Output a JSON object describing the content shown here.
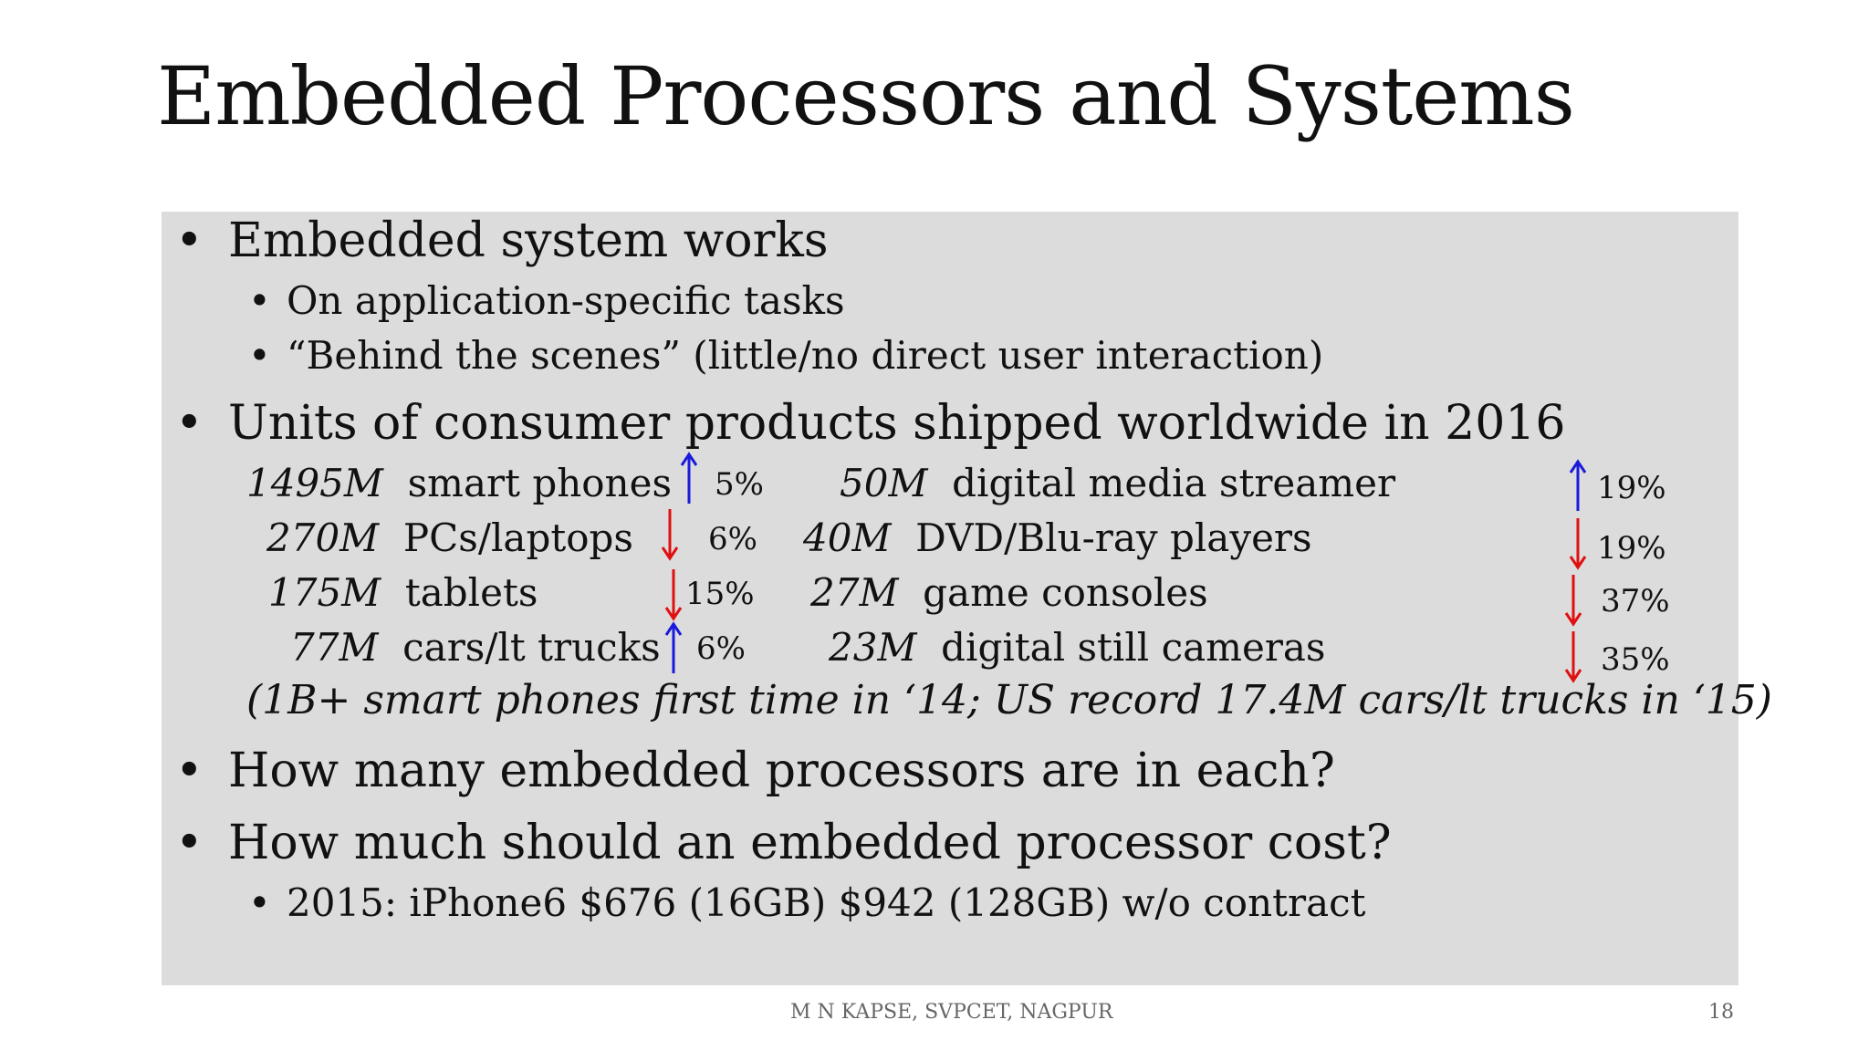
{
  "title": "Embedded Processors and Systems",
  "bullets": {
    "b1": "Embedded system works",
    "b1_sub1": "On application-specific tasks",
    "b1_sub2": "“Behind the scenes” (little/no direct user interaction)",
    "b2": "Units of consumer products shipped worldwide in 2016",
    "b3": "How many embedded processors are in each?",
    "b4": "How much should an embedded processor cost?",
    "b4_sub1": "2015: iPhone6 $676 (16GB) $942 (128GB) w/o contract"
  },
  "shipments_left": [
    {
      "units": "1495M",
      "product": "smart phones",
      "change": "5%",
      "direction": "up"
    },
    {
      "units": "270M",
      "product": "PCs/laptops",
      "change": "6%",
      "direction": "down"
    },
    {
      "units": "175M",
      "product": "tablets",
      "change": "15%",
      "direction": "down"
    },
    {
      "units": "77M",
      "product": "cars/lt trucks",
      "change": "6%",
      "direction": "up"
    }
  ],
  "shipments_right": [
    {
      "units": "50M",
      "product": "digital media streamer",
      "change": "19%",
      "direction": "up"
    },
    {
      "units": "40M",
      "product": "DVD/Blu-ray players",
      "change": "19%",
      "direction": "down"
    },
    {
      "units": "27M",
      "product": "game consoles",
      "change": "37%",
      "direction": "down"
    },
    {
      "units": "23M",
      "product": "digital still cameras",
      "change": "35%",
      "direction": "down"
    }
  ],
  "note": "(1B+ smart phones first time in ‘14; US record 17.4M cars/lt trucks in ‘15)",
  "footer": {
    "author": "M N KAPSE, SVPCET, NAGPUR",
    "page_number": "18"
  },
  "colors": {
    "up_arrow": "#1a1adc",
    "down_arrow": "#e01010",
    "box_background": "#dcdcdc"
  }
}
